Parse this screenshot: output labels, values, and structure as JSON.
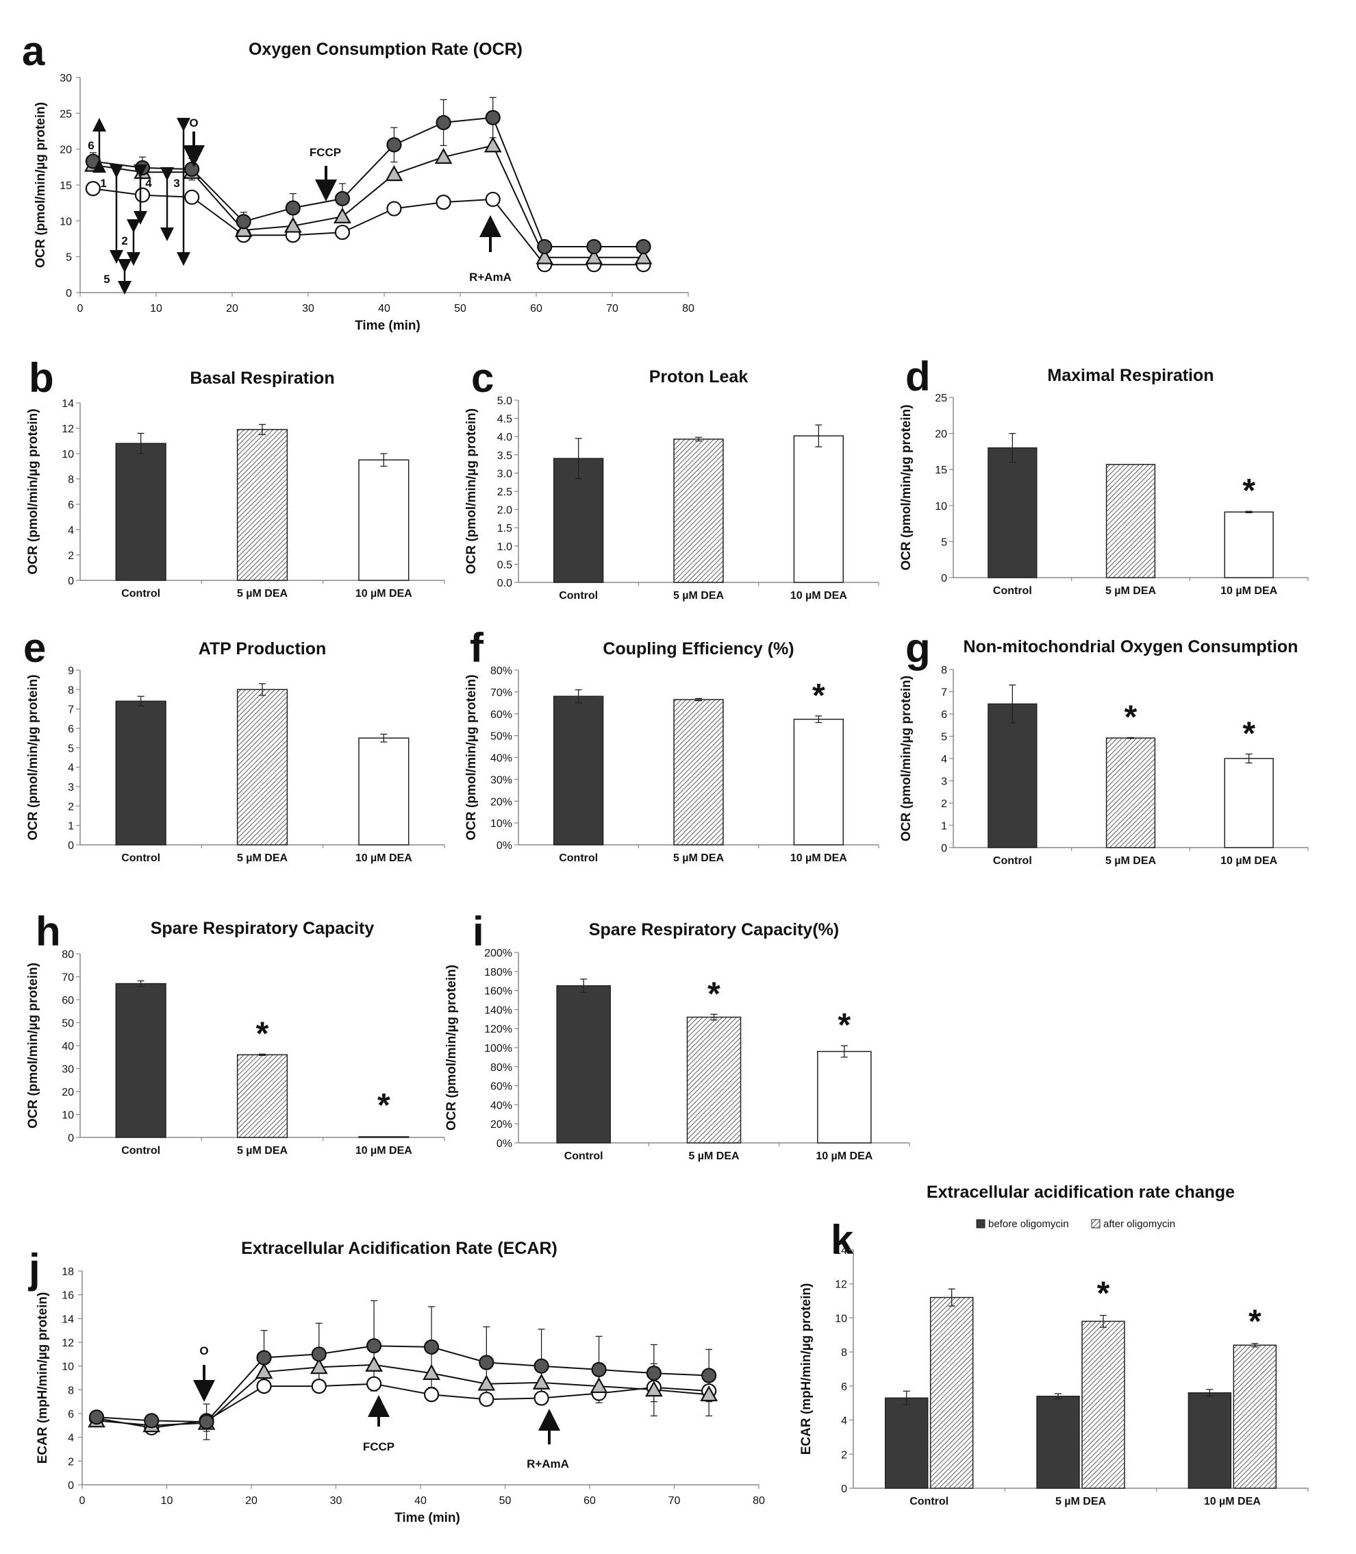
{
  "figure_labels": [
    "a",
    "b",
    "c",
    "d",
    "e",
    "f",
    "g",
    "h",
    "i",
    "j",
    "k"
  ],
  "chart_data": [
    {
      "id": "a",
      "type": "line",
      "title": "Oxygen Consumption Rate (OCR)",
      "xlabel": "Time (min)",
      "ylabel": "OCR (pmol/min/µg protein)",
      "xlim": [
        0,
        80
      ],
      "ylim": [
        0,
        30
      ],
      "xticks": [
        0,
        10,
        20,
        30,
        40,
        50,
        60,
        70,
        80
      ],
      "yticks": [
        0,
        5,
        10,
        15,
        20,
        25,
        30
      ],
      "grid": false,
      "x": [
        1.7,
        8.2,
        14.7,
        21.5,
        28.0,
        34.5,
        41.3,
        47.8,
        54.3,
        61.1,
        67.6,
        74.1
      ],
      "series": [
        {
          "marker": "filled-circle",
          "values": [
            18.3,
            17.4,
            17.2,
            9.9,
            11.8,
            13.1,
            20.6,
            23.7,
            24.4,
            6.4,
            6.4,
            6.4
          ],
          "errors": [
            1.2,
            1.5,
            1.5,
            1.3,
            2.0,
            2.1,
            2.4,
            3.2,
            2.8,
            0,
            0,
            0
          ]
        },
        {
          "marker": "triangle",
          "values": [
            17.8,
            16.8,
            16.8,
            8.7,
            9.3,
            10.6,
            16.5,
            18.9,
            20.5,
            4.9,
            4.9,
            4.9
          ],
          "errors": [
            0,
            0,
            0,
            0,
            0,
            0,
            0,
            0,
            0,
            0,
            0,
            0
          ]
        },
        {
          "marker": "open-circle",
          "values": [
            14.5,
            13.6,
            13.3,
            8.0,
            8.0,
            8.4,
            11.7,
            12.6,
            13.0,
            3.9,
            3.9,
            3.9
          ],
          "errors": [
            0,
            0,
            0,
            0,
            0,
            0,
            0,
            0,
            0,
            0,
            0,
            0
          ]
        }
      ],
      "annotations": [
        "O",
        "FCCP",
        "R+AmA",
        "1",
        "2",
        "3",
        "4",
        "5",
        "6"
      ]
    },
    {
      "id": "b",
      "type": "bar",
      "title": "Basal Respiration",
      "ylabel": "OCR (pmol/min/µg protein)",
      "categories": [
        "Control",
        "5 µM DEA",
        "10 µM DEA"
      ],
      "values": [
        10.8,
        11.9,
        9.5
      ],
      "errors": [
        0.8,
        0.4,
        0.5
      ],
      "ylim": [
        0,
        14
      ],
      "yticks": [
        "0",
        "2",
        "4",
        "6",
        "8",
        "10",
        "12",
        "14"
      ],
      "significant": [
        false,
        false,
        false
      ]
    },
    {
      "id": "c",
      "type": "bar",
      "title": "Proton Leak",
      "ylabel": "OCR (pmol/min/µg protein)",
      "categories": [
        "Control",
        "5 µM DEA",
        "10 µM DEA"
      ],
      "values": [
        3.4,
        3.93,
        4.02
      ],
      "errors": [
        0.55,
        0.05,
        0.3
      ],
      "ylim": [
        0,
        5
      ],
      "yticks": [
        "0.0",
        "0.5",
        "1.0",
        "1.5",
        "2.0",
        "2.5",
        "3.0",
        "3.5",
        "4.0",
        "4.5",
        "5.0"
      ],
      "significant": [
        false,
        false,
        false
      ]
    },
    {
      "id": "d",
      "type": "bar",
      "title": "Maximal Respiration",
      "ylabel": "OCR (pmol/min/µg protein)",
      "categories": [
        "Control",
        "5 µM DEA",
        "10 µM DEA"
      ],
      "values": [
        18,
        15.7,
        9.1
      ],
      "errors": [
        2.0,
        0,
        0.1
      ],
      "ylim": [
        0,
        25
      ],
      "yticks": [
        "0",
        "5",
        "10",
        "15",
        "20",
        "25"
      ],
      "significant": [
        false,
        false,
        true
      ]
    },
    {
      "id": "e",
      "type": "bar",
      "title": "ATP Production",
      "ylabel": "OCR (pmol/min/µg protein)",
      "categories": [
        "Control",
        "5 µM DEA",
        "10 µM DEA"
      ],
      "values": [
        7.4,
        8.0,
        5.5
      ],
      "errors": [
        0.25,
        0.3,
        0.2
      ],
      "ylim": [
        0,
        9
      ],
      "yticks": [
        "0",
        "1",
        "2",
        "3",
        "4",
        "5",
        "6",
        "7",
        "8",
        "9"
      ],
      "significant": [
        false,
        false,
        false
      ]
    },
    {
      "id": "f",
      "type": "bar",
      "title": "Coupling Efficiency (%)",
      "ylabel": "OCR (pmol/min/µg protein)",
      "categories": [
        "Control",
        "5 µM DEA",
        "10 µM DEA"
      ],
      "values": [
        68,
        66.5,
        57.5
      ],
      "errors": [
        3,
        0.5,
        1.5
      ],
      "ylim": [
        0,
        80
      ],
      "yticks": [
        "0%",
        "10%",
        "20%",
        "30%",
        "40%",
        "50%",
        "60%",
        "70%",
        "80%"
      ],
      "significant": [
        false,
        false,
        true
      ]
    },
    {
      "id": "g",
      "type": "bar",
      "title": "Non-mitochondrial Oxygen Consumption",
      "ylabel": "OCR (pmol/min/µg protein)",
      "categories": [
        "Control",
        "5 µM DEA",
        "10 µM DEA"
      ],
      "values": [
        6.45,
        4.92,
        4.0
      ],
      "errors": [
        0.85,
        0.02,
        0.2
      ],
      "ylim": [
        0,
        8
      ],
      "yticks": [
        "0",
        "1",
        "2",
        "3",
        "4",
        "5",
        "6",
        "7",
        "8"
      ],
      "significant": [
        false,
        true,
        true
      ]
    },
    {
      "id": "h",
      "type": "bar",
      "title": "Spare Respiratory Capacity",
      "ylabel": "OCR (pmol/min/µg protein)",
      "categories": [
        "Control",
        "5 µM DEA",
        "10 µM DEA"
      ],
      "values": [
        67,
        36,
        0.3
      ],
      "errors": [
        1.2,
        0.3,
        0
      ],
      "ylim": [
        0,
        80
      ],
      "yticks": [
        "0",
        "10",
        "20",
        "30",
        "40",
        "50",
        "60",
        "70",
        "80"
      ],
      "significant": [
        false,
        true,
        true
      ]
    },
    {
      "id": "i",
      "type": "bar",
      "title": "Spare Respiratory Capacity(%)",
      "ylabel": "OCR (pmol/min/µg protein)",
      "categories": [
        "Control",
        "5 µM DEA",
        "10 µM DEA"
      ],
      "values": [
        165,
        132,
        96
      ],
      "errors": [
        7,
        3,
        6
      ],
      "ylim": [
        0,
        200
      ],
      "yticks": [
        "0%",
        "20%",
        "40%",
        "60%",
        "80%",
        "100%",
        "120%",
        "140%",
        "160%",
        "180%",
        "200%"
      ],
      "significant": [
        false,
        true,
        true
      ]
    },
    {
      "id": "j",
      "type": "line",
      "title": "Extracellular Acidification Rate (ECAR)",
      "xlabel": "Time (min)",
      "ylabel": "ECAR (mpH/min/µg protein)",
      "xlim": [
        0,
        80
      ],
      "ylim": [
        0,
        18
      ],
      "xticks": [
        0,
        10,
        20,
        30,
        40,
        50,
        60,
        70,
        80
      ],
      "yticks": [
        0,
        2,
        4,
        6,
        8,
        10,
        12,
        14,
        16,
        18
      ],
      "grid": false,
      "x": [
        1.7,
        8.2,
        14.7,
        21.5,
        28.0,
        34.5,
        41.3,
        47.8,
        54.3,
        61.1,
        67.6,
        74.1
      ],
      "series": [
        {
          "marker": "filled-circle",
          "values": [
            5.7,
            5.4,
            5.3,
            10.7,
            11.0,
            11.7,
            11.6,
            10.3,
            10.0,
            9.7,
            9.4,
            9.2
          ],
          "errors": [
            0.2,
            0.3,
            1.5,
            2.3,
            2.6,
            3.8,
            3.4,
            3.0,
            3.1,
            2.8,
            2.4,
            2.2
          ]
        },
        {
          "marker": "triangle",
          "values": [
            5.4,
            5.0,
            5.2,
            9.5,
            9.9,
            10.1,
            9.4,
            8.5,
            8.6,
            8.3,
            8.0,
            7.6
          ],
          "errors": [
            0,
            0,
            0.7,
            0,
            0,
            0,
            0,
            0,
            0,
            1.0,
            2.2,
            1.8
          ]
        },
        {
          "marker": "open-circle",
          "values": [
            5.6,
            4.8,
            5.4,
            8.3,
            8.3,
            8.5,
            7.6,
            7.2,
            7.3,
            7.7,
            8.2,
            7.9
          ],
          "errors": [
            0,
            0,
            0,
            0,
            0,
            0,
            0,
            0,
            0,
            0,
            0,
            0
          ]
        }
      ],
      "annotations": [
        "O",
        "FCCP",
        "R+AmA"
      ]
    },
    {
      "id": "k",
      "type": "bar",
      "title": "Extracellular acidification rate change",
      "ylabel": "ECAR (mpH/min/µg protein)",
      "categories": [
        "Control",
        "5 µM DEA",
        "10 µM DEA"
      ],
      "series": [
        {
          "name": "before oligomycin",
          "values": [
            5.3,
            5.4,
            5.6
          ],
          "errors": [
            0.4,
            0.15,
            0.2
          ]
        },
        {
          "name": "after oligomycin",
          "values": [
            11.2,
            9.8,
            8.4
          ],
          "errors": [
            0.5,
            0.35,
            0.1
          ]
        }
      ],
      "ylim": [
        0,
        14
      ],
      "yticks": [
        "0",
        "2",
        "4",
        "6",
        "8",
        "10",
        "12",
        "14"
      ],
      "significant": [
        false,
        true,
        true
      ],
      "legend": "top"
    }
  ]
}
